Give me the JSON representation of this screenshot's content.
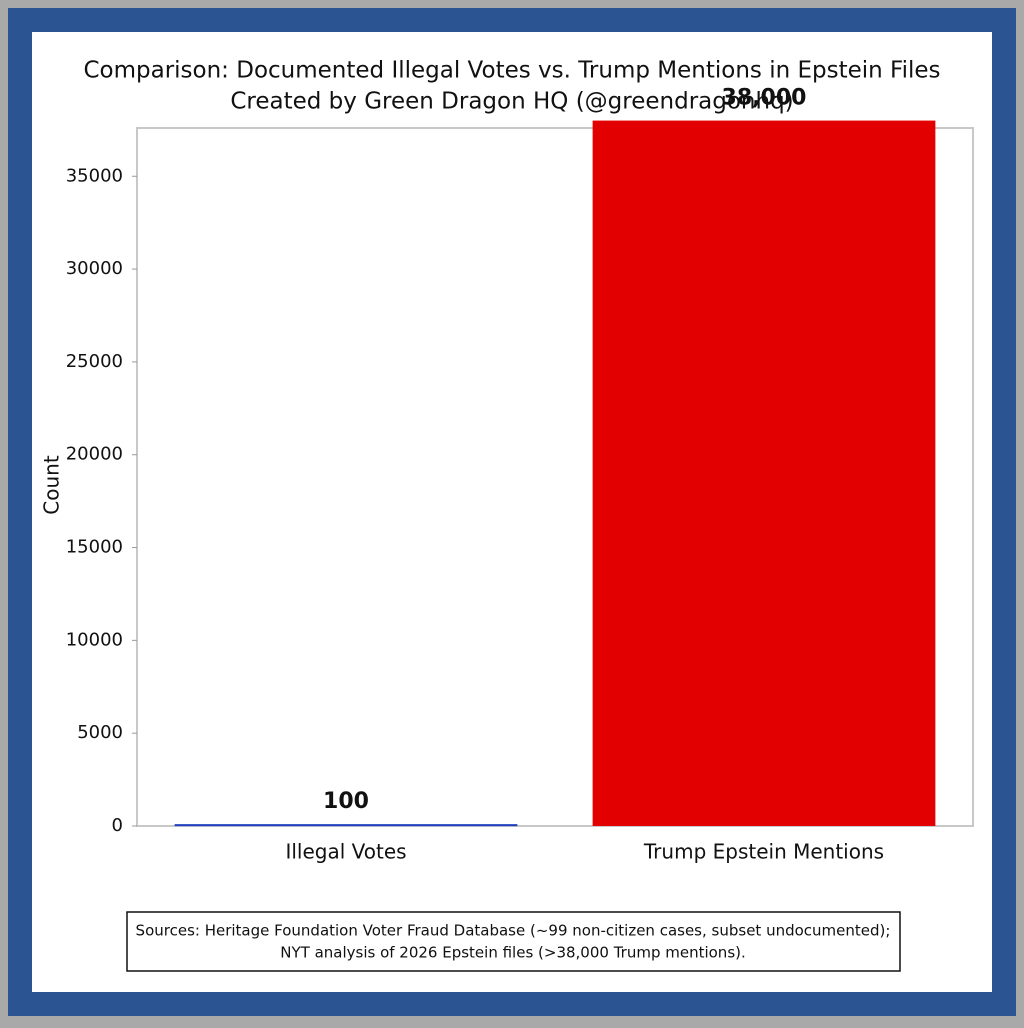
{
  "chart_data": {
    "type": "bar",
    "title": "Comparison: Documented Illegal Votes vs. Trump Mentions in Epstein Files",
    "subtitle": "Created by Green Dragon HQ (@greendragonhq)",
    "ylabel": "Count",
    "categories": [
      "Illegal Votes",
      "Trump Epstein Mentions"
    ],
    "values": [
      100,
      38000
    ],
    "value_labels": [
      "100",
      "38,000"
    ],
    "colors": [
      "#1f3fbf",
      "#e30000"
    ],
    "ylim": [
      0,
      37600
    ],
    "yticks": [
      0,
      5000,
      10000,
      15000,
      20000,
      25000,
      30000,
      35000
    ],
    "source": [
      "Sources: Heritage Foundation Voter Fraud Database (~99 non-citizen cases, subset undocumented);",
      "NYT analysis of 2026 Epstein files (>38,000 Trump mentions)."
    ]
  }
}
